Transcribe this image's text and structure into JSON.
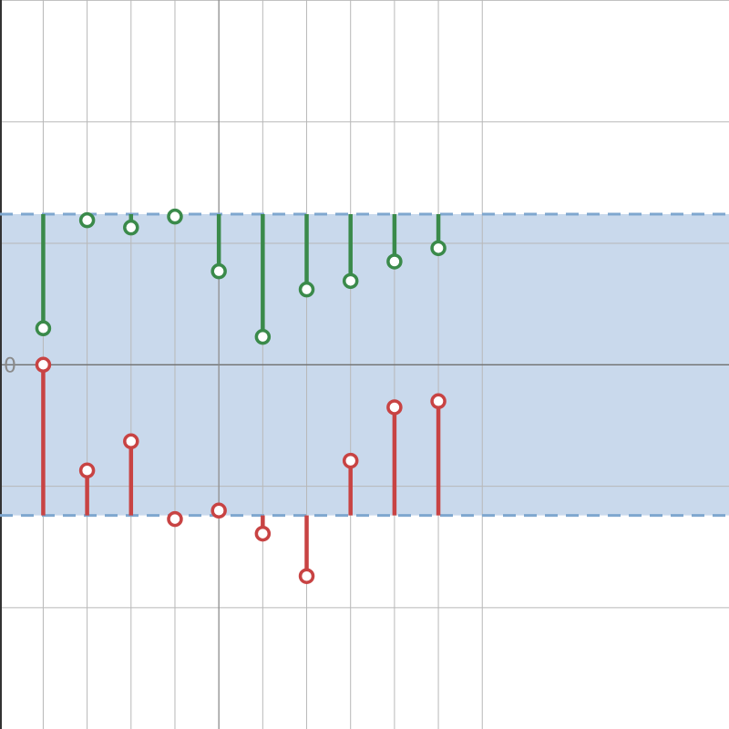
{
  "chart_data": {
    "type": "scatter",
    "x": [
      1,
      2,
      3,
      4,
      5,
      6,
      7,
      8,
      9,
      10
    ],
    "ylim": [
      -3,
      3
    ],
    "xlim": [
      0,
      11
    ],
    "grid": true,
    "band": {
      "low": -1.24,
      "high": 1.24,
      "color": "#c9d9ec",
      "edge_color": "#7fa7cf"
    },
    "y_tick_labels": [
      {
        "value": 0,
        "label": "0"
      }
    ],
    "series": [
      {
        "role": "upper-stems",
        "color": "#3a8a4a",
        "values": [
          0.3,
          1.19,
          1.13,
          1.22,
          0.77,
          0.23,
          0.62,
          0.69,
          0.85,
          0.96
        ]
      },
      {
        "role": "lower-stems",
        "color": "#c84343",
        "values": [
          0.0,
          -0.87,
          -0.63,
          -1.27,
          -1.2,
          -1.39,
          -1.74,
          -0.79,
          -0.35,
          -0.3
        ]
      }
    ]
  }
}
